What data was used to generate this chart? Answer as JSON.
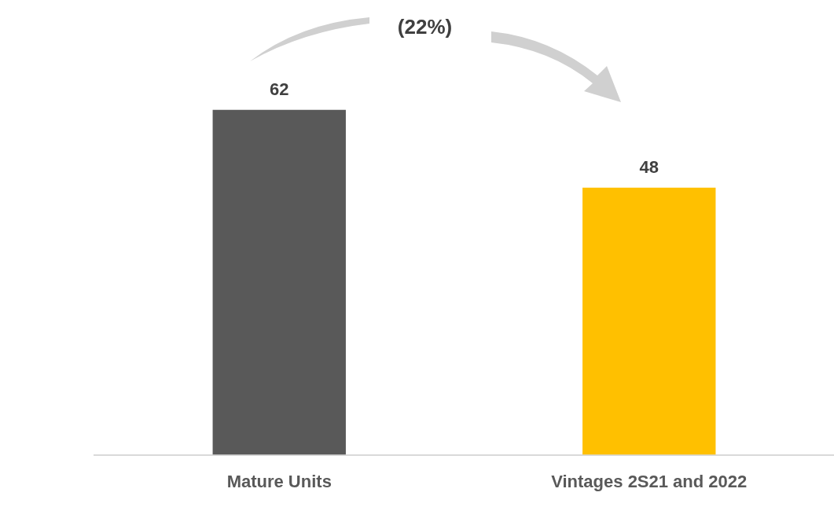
{
  "chart_data": {
    "type": "bar",
    "categories": [
      "Mature Units",
      "Vintages 2S21 and 2022"
    ],
    "values": [
      62,
      48
    ],
    "colors": [
      "#595959",
      "#ffc000"
    ],
    "data_labels": true,
    "annotations": [
      "(22%)"
    ],
    "grid": false,
    "legend": false
  }
}
